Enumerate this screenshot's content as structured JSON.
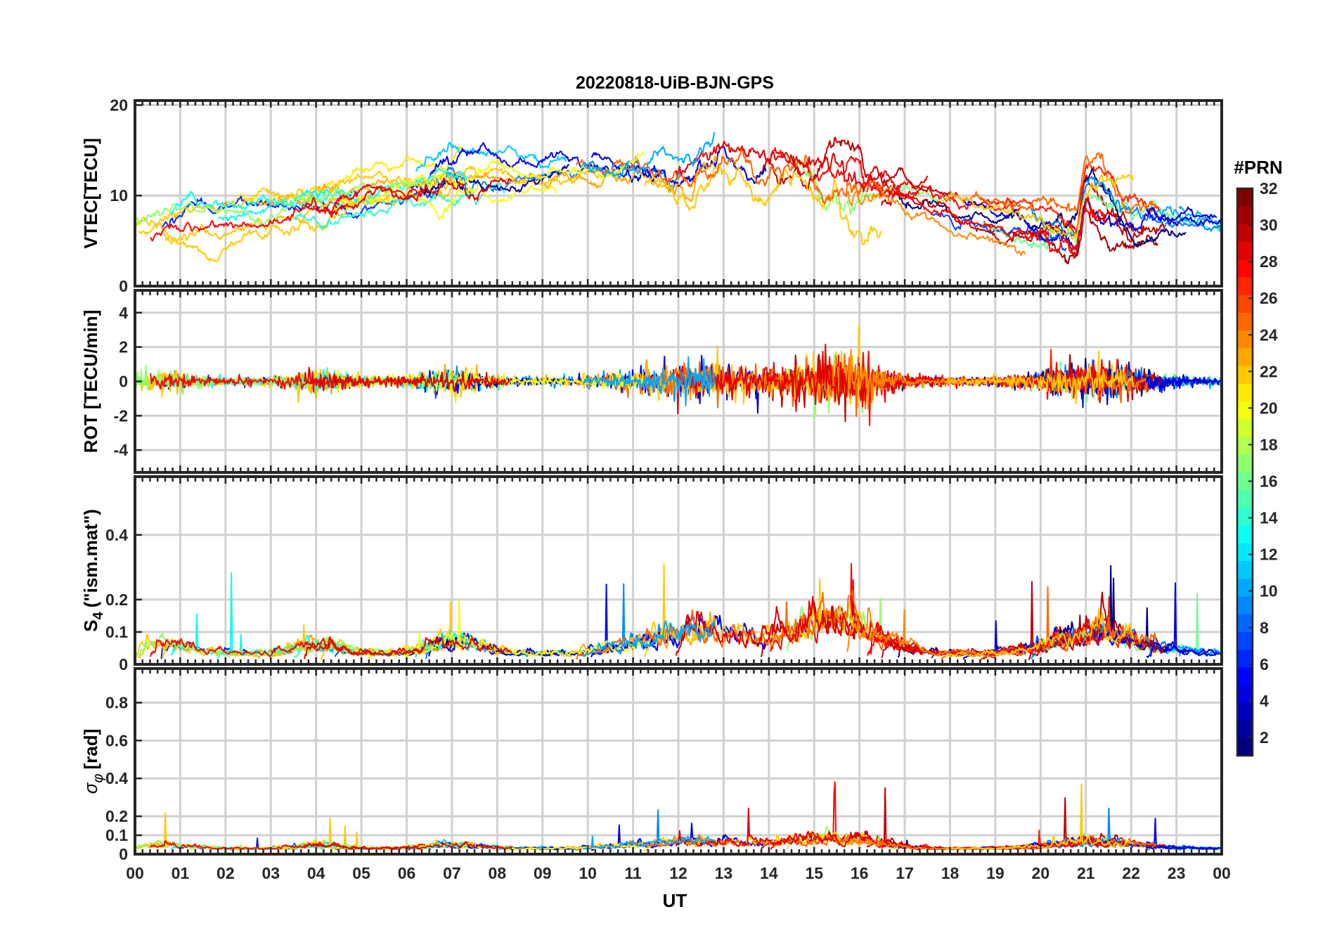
{
  "figure": {
    "title": "20220818-UiB-BJN-GPS",
    "xlabel": "UT",
    "colorbar_title": "#PRN"
  },
  "chart_data": [
    {
      "type": "line",
      "panel": "vtec",
      "title": "20220818-UiB-BJN-GPS",
      "ylabel": "VTEC[TECU]",
      "ylim": [
        0,
        20.5
      ],
      "yticks": [
        0,
        10,
        20
      ],
      "xlim": [
        0,
        24
      ],
      "grid": true,
      "series_note_values": {
        "approx_envelope_UT_to_TECU": [
          [
            0,
            6.5
          ],
          [
            2,
            7.5
          ],
          [
            4,
            9.5
          ],
          [
            6,
            11
          ],
          [
            8,
            13
          ],
          [
            10,
            12.5
          ],
          [
            12,
            12
          ],
          [
            13,
            14
          ],
          [
            15,
            12
          ],
          [
            16,
            11.5
          ],
          [
            18,
            9
          ],
          [
            20,
            7
          ],
          [
            20.8,
            6
          ],
          [
            21,
            11
          ],
          [
            22,
            8
          ],
          [
            24,
            6
          ]
        ]
      }
    },
    {
      "type": "line",
      "panel": "rot",
      "ylabel": "ROT [TECU/min]",
      "ylim": [
        -5.3,
        5.3
      ],
      "yticks": [
        -4,
        -2,
        0,
        2,
        4
      ],
      "xlim": [
        0,
        24
      ],
      "grid": true
    },
    {
      "type": "line",
      "panel": "s4",
      "ylabel": "S4 (\"ism.mat\")",
      "ylabel_main": "S",
      "ylabel_sub": "4",
      "ylabel_rest": "(\"ism.mat\")",
      "ylim": [
        0,
        0.58
      ],
      "yticks": [
        0,
        0.1,
        0.2,
        0.4
      ],
      "ytick_labels": [
        "0",
        "0.1",
        "0.2",
        "0.4"
      ],
      "xlim": [
        0,
        24
      ],
      "grid": true
    },
    {
      "type": "line",
      "panel": "sigma_phi",
      "ylabel": "σφ[rad]",
      "ylabel_main": "σ",
      "ylabel_sub": "φ",
      "ylabel_rest": "[rad]",
      "ylim": [
        0,
        0.98
      ],
      "yticks": [
        0,
        0.1,
        0.2,
        0.4,
        0.6,
        0.8
      ],
      "ytick_labels": [
        "0",
        "0.1",
        "0.2",
        "0.4",
        "0.6",
        "0.8"
      ],
      "xlim": [
        0,
        24
      ],
      "grid": true
    }
  ],
  "xaxis": {
    "ticks": [
      0,
      1,
      2,
      3,
      4,
      5,
      6,
      7,
      8,
      9,
      10,
      11,
      12,
      13,
      14,
      15,
      16,
      17,
      18,
      19,
      20,
      21,
      22,
      23,
      24
    ],
    "tick_labels": [
      "00",
      "01",
      "02",
      "03",
      "04",
      "05",
      "06",
      "07",
      "08",
      "09",
      "10",
      "11",
      "12",
      "13",
      "14",
      "15",
      "16",
      "17",
      "18",
      "19",
      "20",
      "21",
      "22",
      "23",
      "00"
    ]
  },
  "colorbar": {
    "range": [
      1,
      32
    ],
    "ticks": [
      2,
      4,
      6,
      8,
      10,
      12,
      14,
      16,
      18,
      20,
      22,
      24,
      26,
      28,
      30,
      32
    ],
    "tick_labels": [
      "2",
      "4",
      "6",
      "8",
      "10",
      "12",
      "14",
      "16",
      "18",
      "20",
      "22",
      "24",
      "26",
      "28",
      "30",
      "32"
    ],
    "colormap": "jet",
    "levels": 32
  },
  "colors": {
    "grid": "#d0d0d0",
    "axis": "#262626"
  }
}
